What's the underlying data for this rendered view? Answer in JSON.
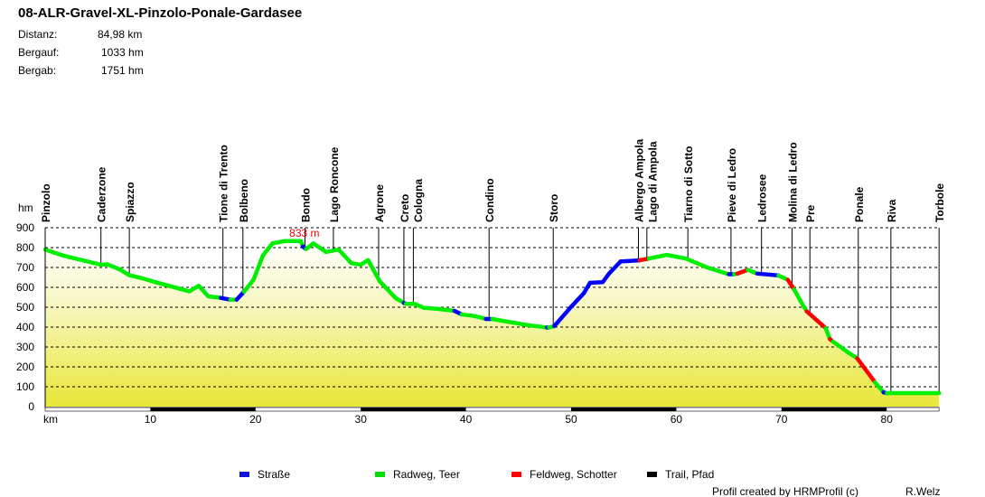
{
  "title": "08-ALR-Gravel-XL-Pinzolo-Ponale-Gardasee",
  "stats": [
    {
      "label": "Distanz:",
      "value": "84,98 km"
    },
    {
      "label": "Bergauf:",
      "value": "1033 hm"
    },
    {
      "label": "Bergab:",
      "value": "1751 hm"
    }
  ],
  "footer": {
    "credit": "Profil created by HRMProfil (c)",
    "author": "R.Welz"
  },
  "chart_data": {
    "type": "line",
    "xlabel": "km",
    "ylabel": "hm",
    "xlim": [
      0,
      84.98
    ],
    "ylim": [
      0,
      900
    ],
    "xticks": [
      10,
      20,
      30,
      40,
      50,
      60,
      70,
      80
    ],
    "yticks": [
      0,
      100,
      200,
      300,
      400,
      500,
      600,
      700,
      800,
      900
    ],
    "grid": "horizontal dashed",
    "max_label": "833 m",
    "max_point": {
      "km": 24.3,
      "hm": 833
    },
    "surface_colors": {
      "S": "#0000ff",
      "R": "#00ee00",
      "F": "#ff0000",
      "T": "#000000"
    },
    "legend": [
      {
        "key": "S",
        "label": "Straße",
        "color": "#1010e0"
      },
      {
        "key": "R",
        "label": "Radweg, Teer",
        "color": "#00dd00"
      },
      {
        "key": "F",
        "label": "Feldweg, Schotter",
        "color": "#ff0000"
      },
      {
        "key": "T",
        "label": "Trail, Pfad",
        "color": "#000000"
      }
    ],
    "profile": [
      [
        0,
        790,
        "R"
      ],
      [
        1.7,
        760,
        "R"
      ],
      [
        5.3,
        714,
        "R"
      ],
      [
        5.9,
        716,
        "R"
      ],
      [
        7.1,
        690,
        "R"
      ],
      [
        8,
        661,
        "R"
      ],
      [
        9.2,
        646,
        "R"
      ],
      [
        10.7,
        623,
        "R"
      ],
      [
        12.8,
        593,
        "R"
      ],
      [
        13.7,
        580,
        "R"
      ],
      [
        14.6,
        608,
        "R"
      ],
      [
        15.5,
        555,
        "R"
      ],
      [
        16.7,
        547,
        "S"
      ],
      [
        17.6,
        538,
        "R"
      ],
      [
        18.2,
        538,
        "S"
      ],
      [
        18.9,
        578,
        "R"
      ],
      [
        19.8,
        638,
        "R"
      ],
      [
        20.7,
        760,
        "R"
      ],
      [
        21.6,
        821,
        "R"
      ],
      [
        22.8,
        833,
        "R"
      ],
      [
        24.3,
        833,
        "R"
      ],
      [
        24.5,
        805,
        "S"
      ],
      [
        24.8,
        793,
        "R"
      ],
      [
        25.5,
        821,
        "R"
      ],
      [
        26.7,
        778,
        "R"
      ],
      [
        27.9,
        790,
        "R"
      ],
      [
        29.1,
        722,
        "R"
      ],
      [
        30,
        714,
        "R"
      ],
      [
        30.7,
        737,
        "R"
      ],
      [
        31.8,
        631,
        "R"
      ],
      [
        33.3,
        547,
        "R"
      ],
      [
        34.1,
        522,
        "S"
      ],
      [
        34.3,
        517,
        "R"
      ],
      [
        35.1,
        517,
        "R"
      ],
      [
        36,
        497,
        "R"
      ],
      [
        37.5,
        491,
        "R"
      ],
      [
        38.9,
        482,
        "S"
      ],
      [
        39.6,
        464,
        "R"
      ],
      [
        40.8,
        456,
        "R"
      ],
      [
        41.9,
        441,
        "S"
      ],
      [
        42.5,
        441,
        "R"
      ],
      [
        44.1,
        426,
        "R"
      ],
      [
        45.9,
        410,
        "R"
      ],
      [
        47.7,
        398,
        "S"
      ],
      [
        47.9,
        398,
        "R"
      ],
      [
        48.4,
        405,
        "S"
      ],
      [
        50,
        502,
        "S"
      ],
      [
        51.2,
        570,
        "S"
      ],
      [
        51.8,
        623,
        "S"
      ],
      [
        53,
        626,
        "S"
      ],
      [
        53.6,
        669,
        "S"
      ],
      [
        54.7,
        730,
        "S"
      ],
      [
        56.5,
        736,
        "F"
      ],
      [
        57.4,
        745,
        "R"
      ],
      [
        59.1,
        763,
        "R"
      ],
      [
        60.9,
        745,
        "R"
      ],
      [
        63,
        699,
        "R"
      ],
      [
        65,
        666,
        "S"
      ],
      [
        65.5,
        666,
        "R"
      ],
      [
        65.8,
        669,
        "F"
      ],
      [
        66.8,
        688,
        "R"
      ],
      [
        67.7,
        669,
        "S"
      ],
      [
        69.7,
        660,
        "R"
      ],
      [
        70.6,
        638,
        "F"
      ],
      [
        71.2,
        590,
        "R"
      ],
      [
        71.8,
        532,
        "R"
      ],
      [
        72.4,
        479,
        "F"
      ],
      [
        74.2,
        395,
        "R"
      ],
      [
        74.6,
        340,
        "F"
      ],
      [
        74.9,
        327,
        "R"
      ],
      [
        76.3,
        274,
        "R"
      ],
      [
        77.2,
        243,
        "F"
      ],
      [
        78.9,
        122,
        "R"
      ],
      [
        79.7,
        72,
        "S"
      ],
      [
        80,
        68,
        "R"
      ],
      [
        84.98,
        68,
        "R"
      ]
    ],
    "waypoints": [
      {
        "name": "Pinzolo",
        "km": 0
      },
      {
        "name": "Caderzone",
        "km": 5.3
      },
      {
        "name": "Spiazzo",
        "km": 8
      },
      {
        "name": "Tione di Trento",
        "km": 16.9
      },
      {
        "name": "Bolbeno",
        "km": 18.8
      },
      {
        "name": "Bondo",
        "km": 24.7
      },
      {
        "name": "Lago Roncone",
        "km": 27.4
      },
      {
        "name": "Agrone",
        "km": 31.7
      },
      {
        "name": "Creto",
        "km": 34.1
      },
      {
        "name": "Cologna",
        "km": 35
      },
      {
        "name": "Condino",
        "km": 42.2
      },
      {
        "name": "Storo",
        "km": 48.3
      },
      {
        "name": "Albergo Ampola",
        "km": 56.4
      },
      {
        "name": "Lago di Ampola",
        "km": 57.2
      },
      {
        "name": "Tiarno di Sotto",
        "km": 61.1
      },
      {
        "name": "Pieve di Ledro",
        "km": 65.2
      },
      {
        "name": "Ledrosee",
        "km": 68.1
      },
      {
        "name": "Molina di Ledro",
        "km": 71
      },
      {
        "name": "Pre",
        "km": 72.7
      },
      {
        "name": "Ponale",
        "km": 77.3
      },
      {
        "name": "Riva",
        "km": 80.4
      },
      {
        "name": "Torbole",
        "km": 84.98
      }
    ]
  }
}
